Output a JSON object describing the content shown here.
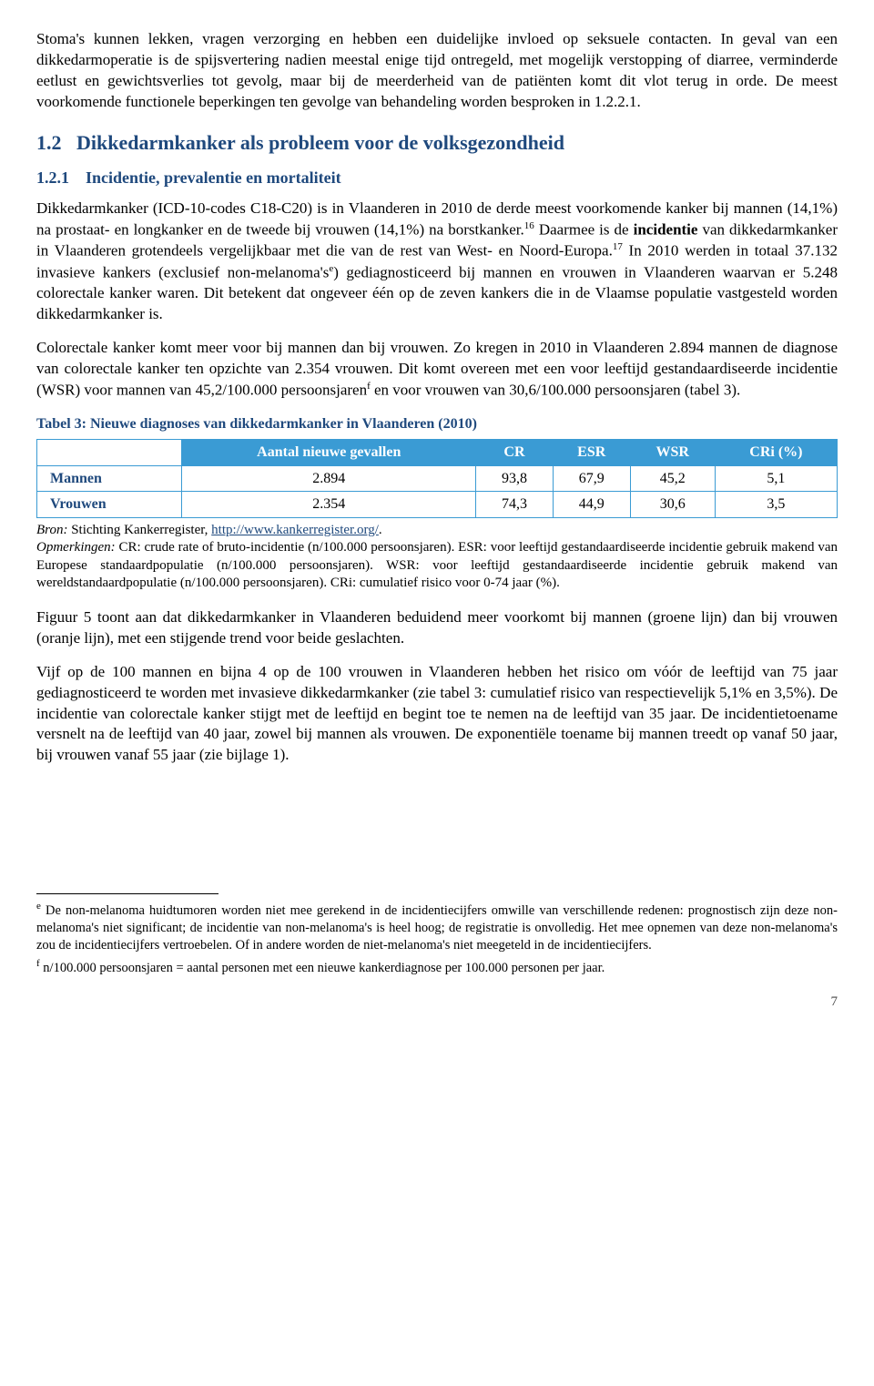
{
  "para1": "Stoma's kunnen lekken, vragen verzorging en hebben een duidelijke invloed op seksuele contacten. In geval van een dikkedarmoperatie is de spijsvertering nadien meestal enige tijd ontregeld, met mogelijk verstopping of diarree, verminderde eetlust en gewichtsverlies tot gevolg, maar bij de meerderheid van de patiënten komt dit vlot terug in orde. De meest voorkomende functionele beperkingen ten gevolge van behandeling worden besproken in 1.2.2.1.",
  "h2": {
    "num": "1.2",
    "text": "Dikkedarmkanker als probleem voor de volksgezondheid"
  },
  "h3": {
    "num": "1.2.1",
    "text": "Incidentie, prevalentie en mortaliteit"
  },
  "para2a": "Dikkedarmkanker (ICD-10-codes C18-C20) is in Vlaanderen in 2010 de derde meest voorkomende kanker bij mannen (14,1%) na prostaat- en longkanker en de tweede bij vrouwen (14,1%) na borstkanker.",
  "para2b": " Daarmee is de ",
  "para2bold": "incidentie",
  "para2c": " van dikkedarmkanker in Vlaanderen grotendeels vergelijkbaar met die van de rest van West- en Noord-Europa.",
  "para2d": " In 2010 werden in totaal 37.132 invasieve kankers (exclusief non-melanoma's",
  "para2e": ") gediagnosticeerd bij mannen en vrouwen in Vlaanderen waarvan er 5.248 colorectale kanker waren. Dit betekent dat ongeveer één op de zeven kankers die in de Vlaamse populatie vastgesteld worden dikkedarmkanker is.",
  "para3a": "Colorectale kanker komt meer voor bij mannen dan bij vrouwen. Zo kregen in 2010 in Vlaanderen 2.894 mannen de diagnose van colorectale kanker ten opzichte van 2.354 vrouwen. Dit komt overeen met een voor leeftijd gestandaardiseerde incidentie (WSR) voor mannen van 45,2/100.000 persoonsjaren",
  "para3b": " en voor vrouwen van 30,6/100.000 persoonsjaren (tabel 3).",
  "table": {
    "caption": "Tabel 3: Nieuwe diagnoses van dikkedarmkanker in Vlaanderen (2010)",
    "headers": [
      "Aantal nieuwe gevallen",
      "CR",
      "ESR",
      "WSR",
      "CRi (%)"
    ],
    "rows": [
      {
        "label": "Mannen",
        "vals": [
          "2.894",
          "93,8",
          "67,9",
          "45,2",
          "5,1"
        ]
      },
      {
        "label": "Vrouwen",
        "vals": [
          "2.354",
          "74,3",
          "44,9",
          "30,6",
          "3,5"
        ]
      }
    ],
    "source_label": "Bron:",
    "source_text": " Stichting Kankerregister, ",
    "source_url": "http://www.kankerregister.org/",
    "remarks_label": "Opmerkingen:",
    "remarks_text": " CR: crude rate of bruto-incidentie (n/100.000 persoonsjaren). ESR: voor leeftijd gestandaardiseerde incidentie gebruik makend van Europese standaardpopulatie (n/100.000 persoonsjaren). WSR: voor leeftijd gestandaardiseerde incidentie gebruik makend van wereldstandaardpopulatie (n/100.000 persoonsjaren). CRi: cumulatief risico voor 0-74 jaar (%)."
  },
  "para4": "Figuur 5 toont aan dat dikkedarmkanker in Vlaanderen beduidend meer voorkomt bij mannen (groene lijn) dan bij vrouwen (oranje lijn), met een stijgende trend voor beide geslachten.",
  "para5": "Vijf op de 100 mannen en bijna 4 op de 100 vrouwen in Vlaanderen hebben het risico om vóór de leeftijd van 75 jaar gediagnosticeerd te worden met invasieve dikkedarmkanker (zie tabel 3: cumulatief risico van respectievelijk 5,1% en 3,5%). De incidentie van colorectale kanker stijgt met de leeftijd en begint toe te nemen na de leeftijd van 35 jaar. De incidentietoename versnelt na de leeftijd van 40 jaar, zowel bij mannen als vrouwen. De exponentiële toename bij mannen treedt op vanaf 50 jaar, bij vrouwen vanaf 55 jaar (zie bijlage 1).",
  "footnotes": {
    "e": " De non-melanoma huidtumoren worden niet mee gerekend in de incidentiecijfers omwille van verschillende redenen: prognostisch zijn deze non-melanoma's niet significant; de incidentie van non-melanoma's is heel hoog; de registratie is onvolledig. Het mee opnemen van deze non-melanoma's zou de incidentiecijfers vertroebelen. Of in andere worden de niet-melanoma's niet meegeteld in de incidentiecijfers.",
    "f": " n/100.000 persoonsjaren = aantal personen met een nieuwe kankerdiagnose per 100.000 personen per jaar."
  },
  "sup": {
    "ref16": "16",
    "ref17": "17",
    "e": "e",
    "f": "f"
  },
  "pagenum": "7"
}
